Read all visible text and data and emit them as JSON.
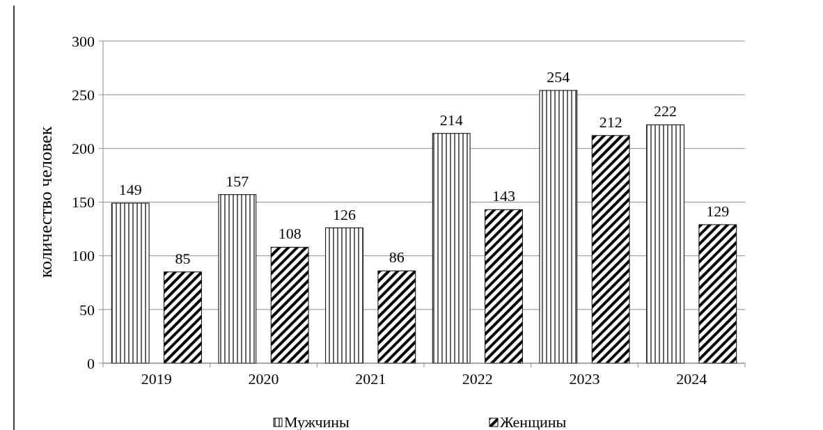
{
  "chart_data": {
    "type": "bar",
    "ylabel": "количество человек",
    "categories": [
      "2019",
      "2020",
      "2021",
      "2022",
      "2023",
      "2024"
    ],
    "series": [
      {
        "name": "Мужчины",
        "color": "#000000",
        "values": [
          149,
          157,
          126,
          214,
          254,
          222
        ]
      },
      {
        "name": "Женщины",
        "color": "#000000",
        "values": [
          85,
          108,
          86,
          143,
          212,
          129
        ]
      }
    ],
    "ylim": [
      0,
      300
    ],
    "yticks": [
      0,
      50,
      100,
      150,
      200,
      250,
      300
    ],
    "grid": "y",
    "data_labels": true,
    "legend": "bottom"
  }
}
